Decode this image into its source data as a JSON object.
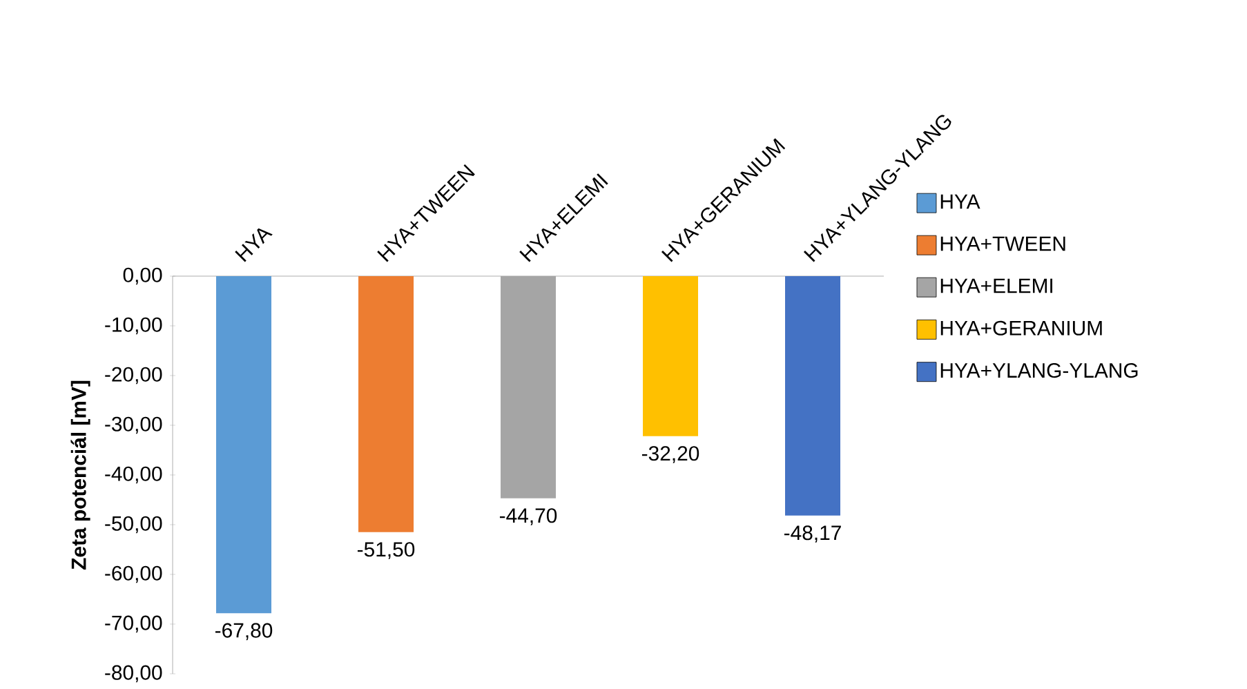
{
  "chart_data": {
    "type": "bar",
    "ylabel": "Zeta potenciál [mV]",
    "categories": [
      "HYA",
      "HYA+TWEEN",
      "HYA+ELEMI",
      "HYA+GERANIUM",
      "HYA+YLANG-YLANG"
    ],
    "series": [
      {
        "name": "HYA",
        "color": "#5b9bd5",
        "values": [
          -67.8,
          null,
          null,
          null,
          null
        ],
        "value_labels": [
          "-67,80",
          null,
          null,
          null,
          null
        ]
      },
      {
        "name": "HYA+TWEEN",
        "color": "#ed7d31",
        "values": [
          null,
          -51.5,
          null,
          null,
          null
        ],
        "value_labels": [
          null,
          "-51,50",
          null,
          null,
          null
        ]
      },
      {
        "name": "HYA+ELEMI",
        "color": "#a5a5a5",
        "values": [
          null,
          null,
          -44.7,
          null,
          null
        ],
        "value_labels": [
          null,
          null,
          "-44,70",
          null,
          null
        ]
      },
      {
        "name": "HYA+GERANIUM",
        "color": "#ffc000",
        "values": [
          null,
          null,
          null,
          -32.2,
          null
        ],
        "value_labels": [
          null,
          null,
          null,
          "-32,20",
          null
        ]
      },
      {
        "name": "HYA+YLANG-YLANG",
        "color": "#4472c4",
        "values": [
          null,
          null,
          null,
          null,
          -48.17
        ],
        "value_labels": [
          null,
          null,
          null,
          null,
          "-48,17"
        ]
      }
    ],
    "ylim": [
      -80,
      0
    ],
    "yticks": [
      {
        "value": 0,
        "label": "0,00"
      },
      {
        "value": -10,
        "label": "-10,00"
      },
      {
        "value": -20,
        "label": "-20,00"
      },
      {
        "value": -30,
        "label": "-30,00"
      },
      {
        "value": -40,
        "label": "-40,00"
      },
      {
        "value": -50,
        "label": "-50,00"
      },
      {
        "value": -60,
        "label": "-60,00"
      },
      {
        "value": -70,
        "label": "-70,00"
      },
      {
        "value": -80,
        "label": "-80,00"
      }
    ],
    "legend": "right"
  }
}
